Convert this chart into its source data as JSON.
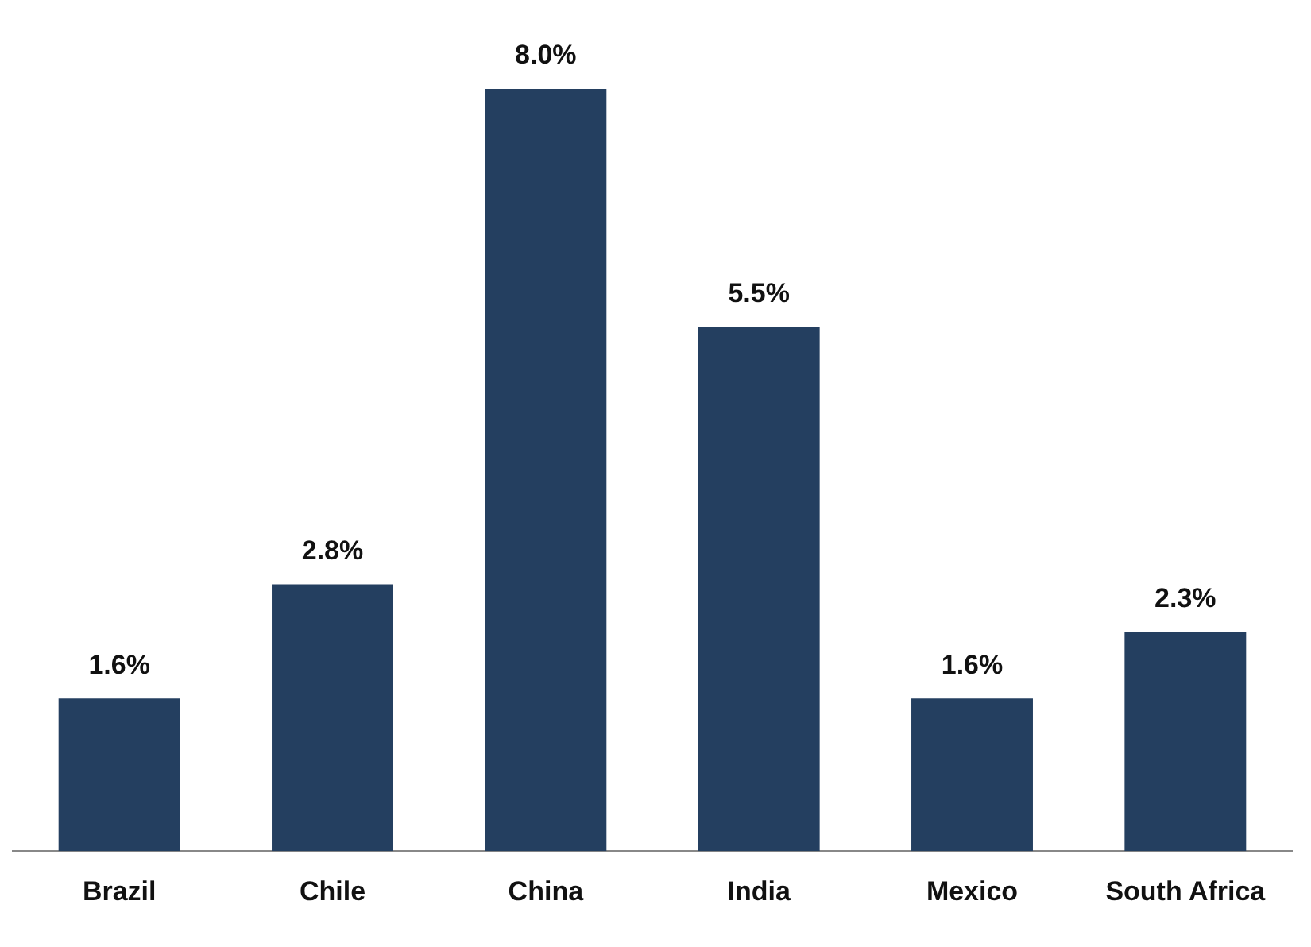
{
  "chart_data": {
    "type": "bar",
    "categories": [
      "Brazil",
      "Chile",
      "China",
      "India",
      "Mexico",
      "South Africa"
    ],
    "values": [
      1.6,
      2.8,
      8.0,
      5.5,
      1.6,
      2.3
    ],
    "value_labels": [
      "1.6%",
      "2.8%",
      "8.0%",
      "5.5%",
      "1.6%",
      "2.3%"
    ],
    "color": "#243f60"
  }
}
